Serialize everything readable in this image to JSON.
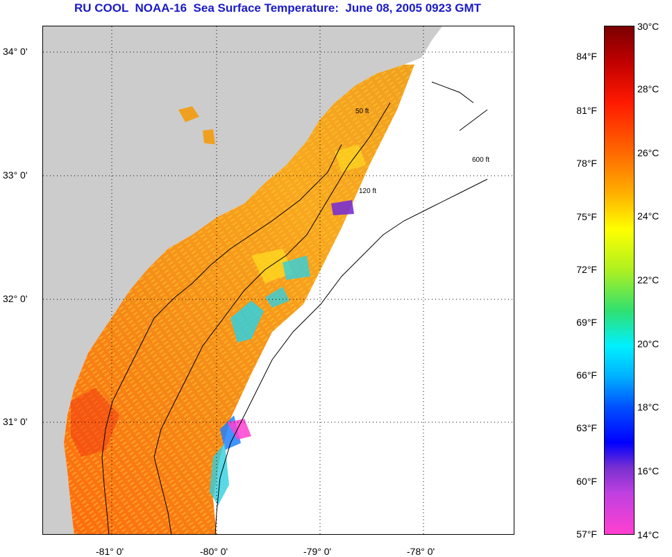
{
  "title": "RU COOL  NOAA-16  Sea Surface Temperature:  June 08, 2005 0923 GMT",
  "map": {
    "lat_labels": [
      "34° 0'",
      "33° 0'",
      "32° 0'",
      "31° 0'"
    ],
    "lon_labels": [
      "-81° 0'",
      "-80° 0'",
      "-79° 0'",
      "-78° 0'"
    ],
    "contour_labels": [
      "50 ft",
      "120 ft",
      "600 ft"
    ],
    "colors": {
      "land": "#cccccc",
      "water_sst": "#f0a020",
      "no_data": "#ffffff"
    }
  },
  "colorbar": {
    "fahrenheit": [
      "84°F",
      "81°F",
      "78°F",
      "75°F",
      "72°F",
      "69°F",
      "66°F",
      "63°F",
      "60°F",
      "57°F"
    ],
    "celsius": [
      "30°C",
      "28°C",
      "26°C",
      "24°C",
      "22°C",
      "20°C",
      "18°C",
      "16°C",
      "14°C"
    ]
  }
}
